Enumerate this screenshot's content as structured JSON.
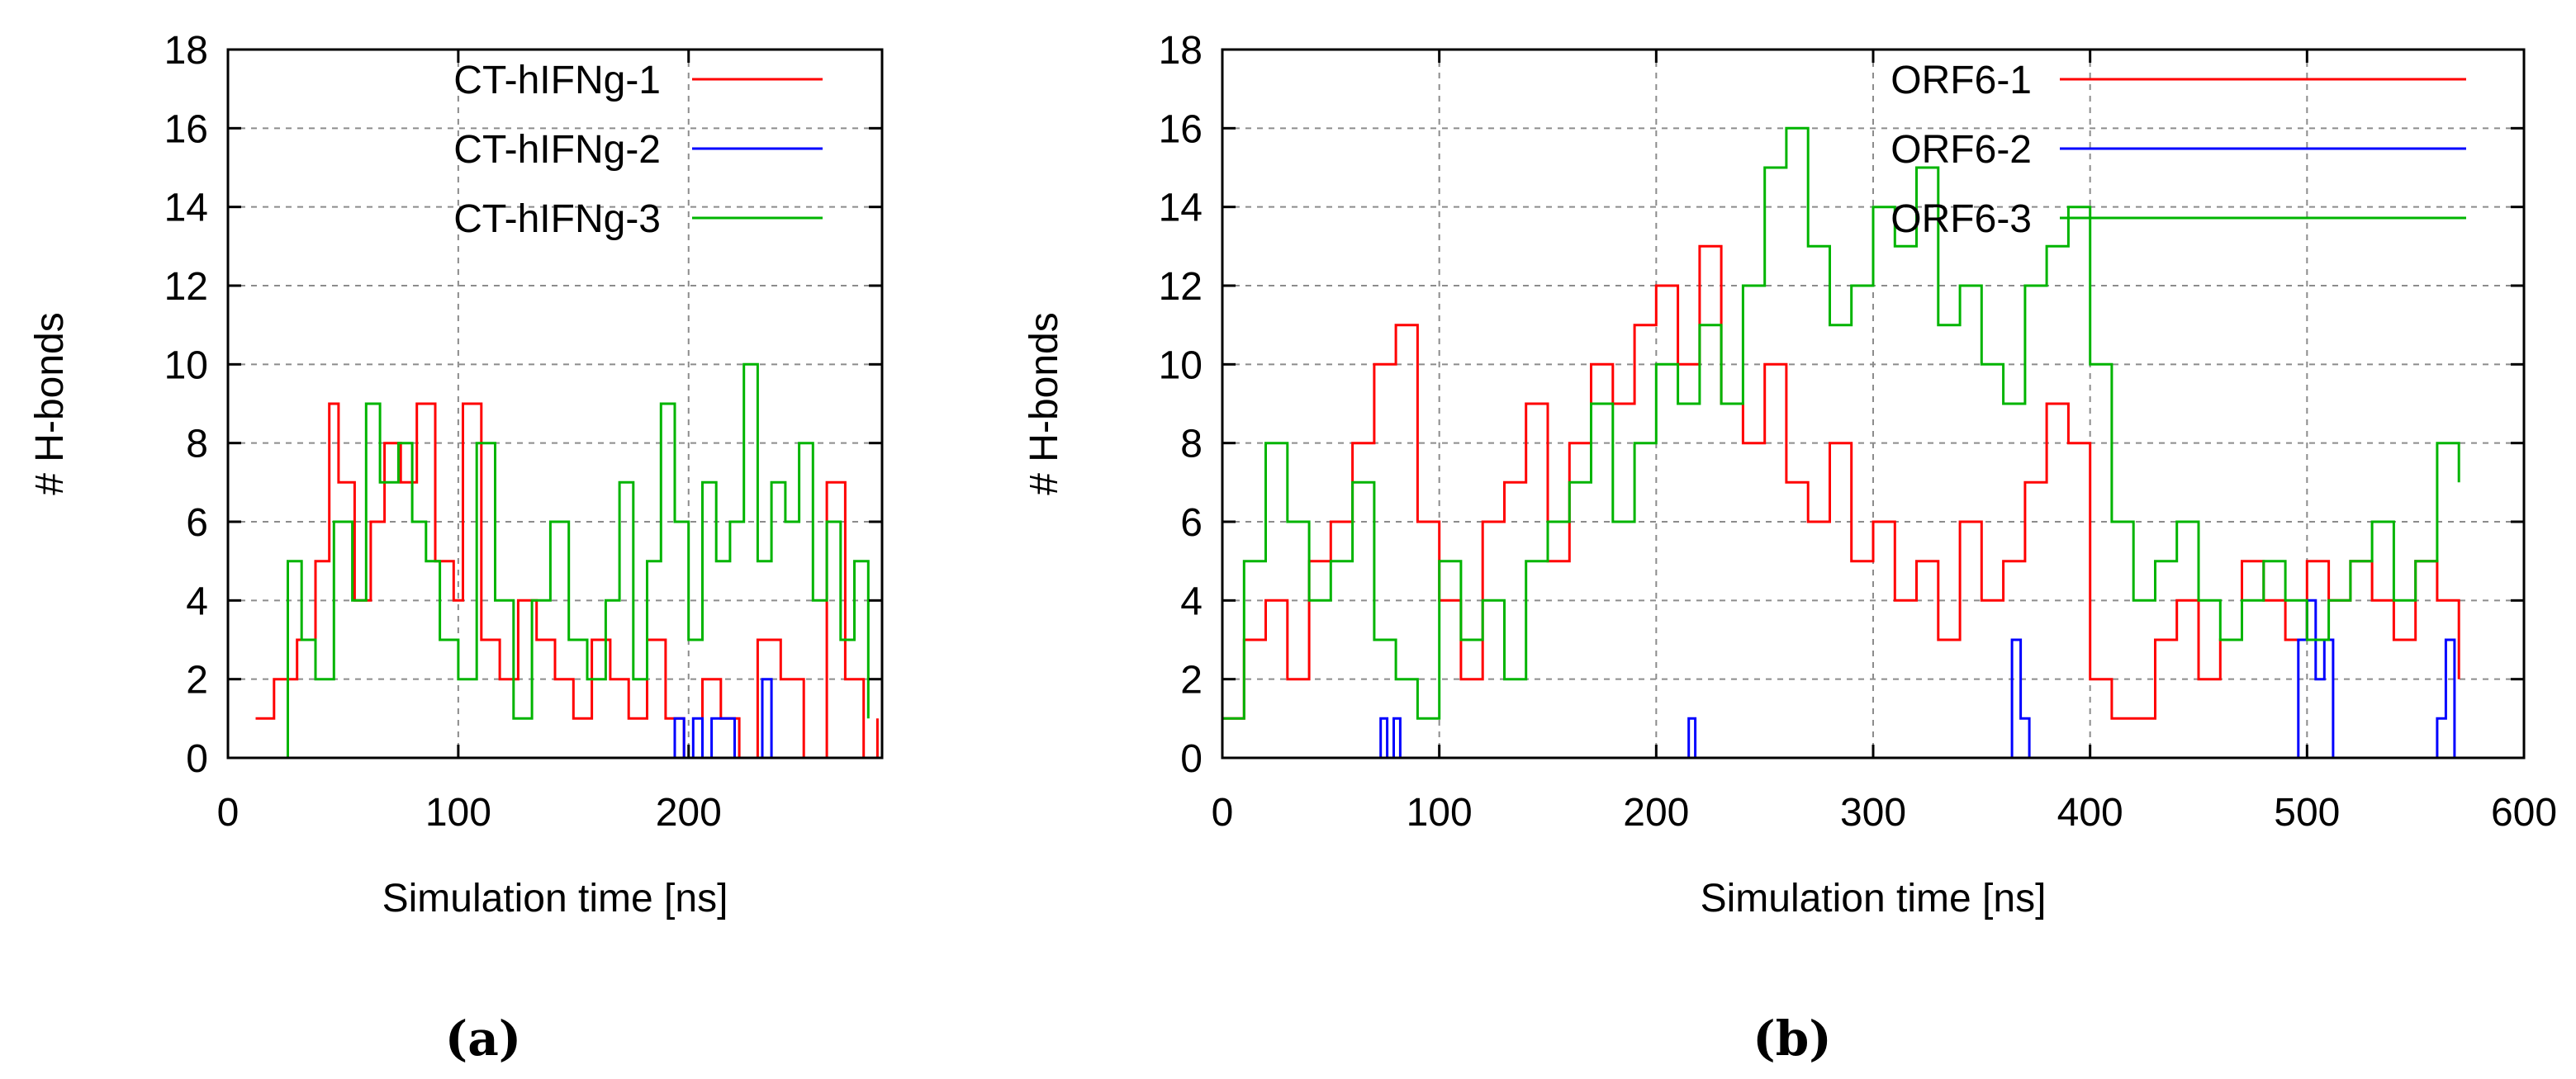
{
  "chart_data": [
    {
      "type": "line",
      "panel_label": "(a)",
      "xlabel": "Simulation time [ns]",
      "ylabel": "# H-bonds",
      "xlim": [
        0,
        284
      ],
      "ylim": [
        0,
        18
      ],
      "xticks": [
        "0",
        "100",
        "200"
      ],
      "yticks": [
        "0",
        "2",
        "4",
        "6",
        "8",
        "10",
        "12",
        "14",
        "16",
        "18"
      ],
      "grid": true,
      "legend_position": "top-right",
      "series": [
        {
          "name": "CT-hIFNg-1",
          "color": "#ff0000",
          "x": [
            12,
            20,
            30,
            38,
            44,
            48,
            55,
            62,
            68,
            75,
            82,
            90,
            98,
            102,
            110,
            118,
            126,
            134,
            142,
            150,
            158,
            166,
            174,
            182,
            190,
            198,
            206,
            214,
            222,
            230,
            240,
            250,
            260,
            268,
            276,
            282
          ],
          "y": [
            1,
            2,
            3,
            5,
            9,
            7,
            4,
            6,
            8,
            7,
            9,
            5,
            4,
            9,
            3,
            2,
            4,
            3,
            2,
            1,
            3,
            2,
            1,
            3,
            1,
            0,
            2,
            1,
            0,
            3,
            2,
            0,
            7,
            2,
            0,
            1
          ]
        },
        {
          "name": "CT-hIFNg-2",
          "color": "#0000ff",
          "x": [
            0,
            190,
            194,
            198,
            202,
            206,
            210,
            220,
            228,
            232,
            236,
            240,
            284
          ],
          "y": [
            0,
            0,
            1,
            0,
            1,
            0,
            1,
            0,
            0,
            2,
            0,
            0,
            0
          ]
        },
        {
          "name": "CT-hIFNg-3",
          "color": "#00b400",
          "x": [
            20,
            26,
            32,
            38,
            46,
            54,
            60,
            66,
            74,
            80,
            86,
            92,
            100,
            108,
            116,
            124,
            132,
            140,
            148,
            156,
            164,
            170,
            176,
            182,
            188,
            194,
            200,
            206,
            212,
            218,
            224,
            230,
            236,
            242,
            248,
            254,
            260,
            266,
            272,
            278
          ],
          "y": [
            0,
            5,
            3,
            2,
            6,
            4,
            9,
            7,
            8,
            6,
            5,
            3,
            2,
            8,
            4,
            1,
            4,
            6,
            3,
            2,
            4,
            7,
            2,
            5,
            9,
            6,
            3,
            7,
            5,
            6,
            10,
            5,
            7,
            6,
            8,
            4,
            6,
            3,
            5,
            1
          ]
        }
      ]
    },
    {
      "type": "line",
      "panel_label": "(b)",
      "xlabel": "Simulation time [ns]",
      "ylabel": "# H-bonds",
      "xlim": [
        0,
        600
      ],
      "ylim": [
        0,
        18
      ],
      "xticks": [
        "0",
        "100",
        "200",
        "300",
        "400",
        "500",
        "600"
      ],
      "yticks": [
        "0",
        "2",
        "4",
        "6",
        "8",
        "10",
        "12",
        "14",
        "16",
        "18"
      ],
      "grid": true,
      "legend_position": "top-right",
      "series": [
        {
          "name": "ORF6-1",
          "color": "#ff0000",
          "x": [
            0,
            10,
            20,
            30,
            40,
            50,
            60,
            70,
            80,
            90,
            100,
            110,
            120,
            130,
            140,
            150,
            160,
            170,
            180,
            190,
            200,
            210,
            220,
            230,
            240,
            250,
            260,
            270,
            280,
            290,
            300,
            310,
            320,
            330,
            340,
            350,
            360,
            370,
            380,
            390,
            400,
            410,
            420,
            430,
            440,
            450,
            460,
            470,
            480,
            490,
            500,
            510,
            520,
            530,
            540,
            550,
            560,
            570
          ],
          "y": [
            1,
            3,
            4,
            2,
            5,
            6,
            8,
            10,
            11,
            6,
            4,
            2,
            6,
            7,
            9,
            5,
            8,
            10,
            9,
            11,
            12,
            10,
            13,
            9,
            8,
            10,
            7,
            6,
            8,
            5,
            6,
            4,
            5,
            3,
            6,
            4,
            5,
            7,
            9,
            8,
            2,
            1,
            1,
            3,
            4,
            2,
            3,
            5,
            4,
            3,
            5,
            4,
            5,
            4,
            3,
            5,
            4,
            2
          ]
        },
        {
          "name": "ORF6-2",
          "color": "#0000ff",
          "x": [
            0,
            70,
            73,
            76,
            79,
            82,
            90,
            212,
            215,
            218,
            225,
            360,
            364,
            368,
            372,
            380,
            492,
            496,
            500,
            504,
            508,
            512,
            518,
            556,
            560,
            564,
            568,
            572
          ],
          "y": [
            0,
            0,
            1,
            0,
            1,
            0,
            0,
            0,
            1,
            0,
            0,
            0,
            3,
            1,
            0,
            0,
            0,
            3,
            4,
            2,
            3,
            0,
            0,
            0,
            1,
            3,
            0,
            0
          ]
        },
        {
          "name": "ORF6-3",
          "color": "#00b400",
          "x": [
            0,
            10,
            20,
            30,
            40,
            50,
            60,
            70,
            80,
            90,
            100,
            110,
            120,
            130,
            140,
            150,
            160,
            170,
            180,
            190,
            200,
            210,
            220,
            230,
            240,
            250,
            260,
            270,
            280,
            290,
            300,
            310,
            320,
            330,
            340,
            350,
            360,
            370,
            380,
            390,
            400,
            410,
            420,
            430,
            440,
            450,
            460,
            470,
            480,
            490,
            500,
            510,
            520,
            530,
            540,
            550,
            560,
            570
          ],
          "y": [
            1,
            5,
            8,
            6,
            4,
            5,
            7,
            3,
            2,
            1,
            5,
            3,
            4,
            2,
            5,
            6,
            7,
            9,
            6,
            8,
            10,
            9,
            11,
            9,
            12,
            15,
            16,
            13,
            11,
            12,
            14,
            13,
            15,
            11,
            12,
            10,
            9,
            12,
            13,
            14,
            10,
            6,
            4,
            5,
            6,
            4,
            3,
            4,
            5,
            4,
            3,
            4,
            5,
            6,
            4,
            5,
            8,
            7
          ]
        }
      ]
    }
  ]
}
